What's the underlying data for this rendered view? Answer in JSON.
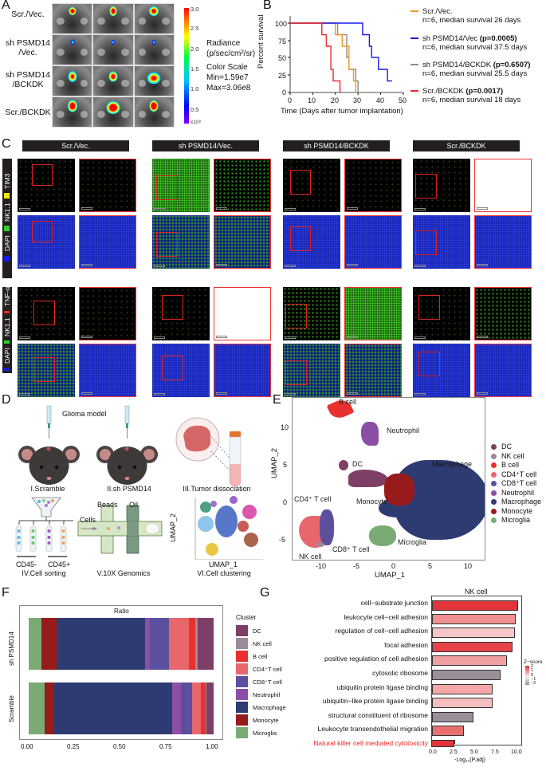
{
  "panels": {
    "A": {
      "label": "A",
      "row_labels": [
        "Scr./Vec.",
        "sh PSMD14\n/Vec.",
        "sh PSMD14\n/BCKDK",
        "Scr./BCKDK"
      ],
      "colorbar": {
        "ticks": [
          "3.0",
          "2.5",
          "2.0",
          "1.5",
          "1.0",
          "0.5"
        ],
        "unit": "x10⁸",
        "colors": [
          "#8a00ff",
          "#0000ff",
          "#00c8ff",
          "#00ff40",
          "#ffff00",
          "#ff8000",
          "#ff0000"
        ]
      },
      "radiance_title": "Radiance",
      "radiance_unit": "(p/sec/cm²/sr)",
      "color_scale_title": "Color Scale",
      "color_scale_min": "Min=1.59e7",
      "color_scale_max": "Max=3.06e8"
    },
    "B": {
      "label": "B",
      "legend": [
        {
          "name": "Scr./Vec.",
          "p": "",
          "detail": "n=6, median survival 26 days",
          "color": "#f0952a"
        },
        {
          "name": "sh PSMD14/Vec",
          "p": "(p=0.0005)",
          "detail": "n=6, median survival 37.5 days",
          "color": "#1a1aee"
        },
        {
          "name": "sh PSMD14/BCKDK",
          "p": "(p=0.6507)",
          "detail": "n=6, median survival 25.5 days",
          "color": "#8a8a8a"
        },
        {
          "name": "Scr./BCKDK",
          "p": "(p=0.0017)",
          "detail": "n=6, median survival 18 days",
          "color": "#ee2a2a"
        }
      ]
    },
    "C": {
      "label": "C",
      "column_headers": [
        "Scr./Vec.",
        "sh PSMD14/Vec.",
        "sh PSMD14/BCKDK",
        "Scr./BCKDK"
      ],
      "row_group_1": {
        "dapi": "DAPI",
        "nk": "NK1.1",
        "marker": "TIM3",
        "marker_color": "#f2e600"
      },
      "row_group_2": {
        "dapi": "DAPI",
        "nk": "NK1.1",
        "marker": "TNF-α",
        "marker_color": "#ee2a1a"
      },
      "dapi_color": "#1a1aff",
      "nk_color": "#2ad42a"
    },
    "D": {
      "label": "D",
      "title": "Glioma model",
      "steps": [
        "I.Scramble",
        "II.sh PSMD14",
        "III.Tumor dissociation",
        "IV.Cell sorting",
        "V.10X Genomics",
        "VI.Cell clustering"
      ],
      "sort_labels": [
        "CD45-",
        "CD45+"
      ],
      "chip_labels": {
        "beads": "Beads",
        "oil": "Oil",
        "cells": "Cells"
      },
      "mini_umap_x": "UMAP_1",
      "mini_umap_y": "UMAP_2"
    },
    "E": {
      "label": "E"
    },
    "F": {
      "label": "F"
    },
    "G": {
      "label": "G"
    }
  },
  "chart_data": [
    {
      "id": "B",
      "type": "line",
      "title": "",
      "xlabel": "Time (Days after tumor implantation)",
      "ylabel": "Percent survival",
      "xlim": [
        0,
        50
      ],
      "ylim": [
        0,
        100
      ],
      "xticks": [
        "0",
        "10",
        "20",
        "30",
        "40",
        "50"
      ],
      "yticks": [
        "0",
        "25",
        "50",
        "75",
        "100"
      ],
      "step": true,
      "series": [
        {
          "name": "Scr./Vec.",
          "color": "#f0952a",
          "x": [
            0,
            20,
            23,
            26,
            28,
            29
          ],
          "y": [
            100,
            83.3,
            66.7,
            33.3,
            16.7,
            0
          ]
        },
        {
          "name": "sh PSMD14/Vec",
          "color": "#1a1aee",
          "x": [
            0,
            32,
            35,
            36,
            39,
            43,
            45
          ],
          "y": [
            100,
            83.3,
            66.7,
            50,
            33.3,
            16.7,
            16.7
          ]
        },
        {
          "name": "sh PSMD14/BCKDK",
          "color": "#8a8a8a",
          "x": [
            0,
            21,
            25,
            26,
            29,
            30
          ],
          "y": [
            100,
            83.3,
            50,
            33.3,
            16.7,
            0
          ]
        },
        {
          "name": "Scr./BCKDK",
          "color": "#ee2a2a",
          "x": [
            0,
            14,
            16,
            18,
            19,
            22
          ],
          "y": [
            100,
            83.3,
            66.7,
            33.3,
            16.7,
            0
          ]
        }
      ]
    },
    {
      "id": "E",
      "type": "scatter",
      "title": "",
      "xlabel": "UMAP_1",
      "ylabel": "UMAP_2",
      "xlim": [
        -13,
        12.5
      ],
      "ylim": [
        -8.5,
        13.5
      ],
      "xticks": [
        "-10",
        "-5",
        "0",
        "5",
        "10"
      ],
      "yticks": [
        "-5",
        "0",
        "5",
        "10"
      ],
      "annotations": [
        "B cell",
        "Neutrophil",
        "DC",
        "Macrophage",
        "CD4⁺ T cell",
        "Monocyte",
        "CD8⁺ T cell",
        "Microglia",
        "NK cell"
      ],
      "legend": [
        {
          "name": "DC",
          "color": "#7e3f66"
        },
        {
          "name": "NK cell",
          "color": "#9a8a9a"
        },
        {
          "name": "B cell",
          "color": "#e8302f"
        },
        {
          "name": "CD4⁺T cell",
          "color": "#e8676d"
        },
        {
          "name": "CD8⁺T cell",
          "color": "#5c4f9e"
        },
        {
          "name": "Neutrophil",
          "color": "#8c4fa6"
        },
        {
          "name": "Macrophage",
          "color": "#2e3a72"
        },
        {
          "name": "Monocyte",
          "color": "#961b1a"
        },
        {
          "name": "Microglia",
          "color": "#7aab74"
        }
      ],
      "clusters": [
        {
          "name": "B cell",
          "cx": -4.5,
          "cy": 11.5
        },
        {
          "name": "Neutrophil",
          "cx": -3,
          "cy": 8.5
        },
        {
          "name": "DC",
          "cx": -7,
          "cy": 4.5
        },
        {
          "name": "Macrophage",
          "cx": 4,
          "cy": 1
        },
        {
          "name": "Monocyte",
          "cx": 0.5,
          "cy": 1.5
        },
        {
          "name": "CD4⁺T cell",
          "cx": -10.5,
          "cy": -4.5
        },
        {
          "name": "CD8⁺T cell",
          "cx": -9,
          "cy": -4.5
        },
        {
          "name": "Microglia",
          "cx": -1,
          "cy": -5.5
        },
        {
          "name": "NK cell",
          "cx": -9.5,
          "cy": -7
        }
      ]
    },
    {
      "id": "F",
      "type": "bar",
      "orientation": "horizontal",
      "stacked": true,
      "title": "Ratio",
      "xlabel": "",
      "ylabel": "",
      "xlim": [
        0,
        1
      ],
      "xticks": [
        "0.00",
        "0.25",
        "0.50",
        "0.75",
        "1.00"
      ],
      "categories": [
        "sh PSMD14",
        "Scramble"
      ],
      "legend_title": "Cluster",
      "series": [
        {
          "name": "Microglia",
          "color": "#7aab74",
          "values": [
            0.07,
            0.085
          ]
        },
        {
          "name": "Monocyte",
          "color": "#961b1a",
          "values": [
            0.08,
            0.05
          ]
        },
        {
          "name": "Macrophage",
          "color": "#2e3a72",
          "values": [
            0.48,
            0.64
          ]
        },
        {
          "name": "Neutrophil",
          "color": "#8c4fa6",
          "values": [
            0.025,
            0.05
          ]
        },
        {
          "name": "CD8⁺T cell",
          "color": "#5c4f9e",
          "values": [
            0.105,
            0.06
          ]
        },
        {
          "name": "CD4⁺T cell",
          "color": "#e8676d",
          "values": [
            0.105,
            0.045
          ]
        },
        {
          "name": "B cell",
          "color": "#e8302f",
          "values": [
            0.035,
            0.025
          ]
        },
        {
          "name": "NK cell",
          "color": "#9a8a9a",
          "values": [
            0.015,
            0.005
          ]
        },
        {
          "name": "DC",
          "color": "#7e3f66",
          "values": [
            0.085,
            0.04
          ]
        }
      ],
      "legend_order": [
        "DC",
        "NK cell",
        "B cell",
        "CD4⁺T cell",
        "CD8⁺T cell",
        "Neutrophil",
        "Macrophage",
        "Monocyte",
        "Microglia"
      ]
    },
    {
      "id": "G",
      "type": "bar",
      "orientation": "horizontal",
      "title": "NK cell",
      "xlabel": "-Log₁₀(P.adj)",
      "ylabel": "",
      "xlim": [
        0,
        10.5
      ],
      "xticks": [
        "0.0",
        "2.5",
        "5.0",
        "7.5",
        "10.0"
      ],
      "categories": [
        "cell−substrate junction",
        "leukocyte cell−cell adhesion",
        "regulation of cell−cell adhesion",
        "focal adhesion",
        "positive regulation of cell adhesion",
        "cytosolic ribosome",
        "ubiquitin protein ligase binding",
        "ubiquitin−like protein ligase binding",
        "structural constituent of ribosome",
        "Leukocyte transendothelial migration",
        "Natural killer cell mediated cytotoxicity"
      ],
      "values": [
        10.0,
        9.7,
        9.6,
        9.4,
        8.7,
        8.0,
        7.0,
        7.0,
        4.8,
        3.7,
        2.7
      ],
      "colors": [
        "#e3343a",
        "#f09090",
        "#f5c6c6",
        "#e64348",
        "#f0a0a0",
        "#9a8e98",
        "#f3a7a7",
        "#f5bebe",
        "#9a8e98",
        "#ea7070",
        "#e3343a"
      ],
      "highlight_index": 10,
      "highlight_color": "#ee2222",
      "colorbar": {
        "title": "Z−score",
        "ticks": [
          "2",
          "1",
          "0",
          "−1",
          "−2"
        ]
      }
    }
  ]
}
